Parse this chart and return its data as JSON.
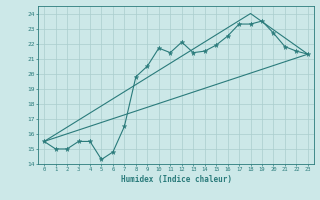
{
  "line1_x": [
    0,
    1,
    2,
    3,
    4,
    5,
    6,
    7,
    8,
    9,
    10,
    11,
    12,
    13,
    14,
    15,
    16,
    17,
    18,
    19,
    20,
    21,
    22,
    23
  ],
  "line1_y": [
    15.5,
    15.0,
    15.0,
    15.5,
    15.5,
    14.3,
    14.8,
    16.5,
    19.8,
    20.5,
    21.7,
    21.4,
    22.1,
    21.4,
    21.5,
    21.9,
    22.5,
    23.3,
    23.3,
    23.5,
    22.7,
    21.8,
    21.5,
    21.3
  ],
  "line2_x": [
    0,
    23
  ],
  "line2_y": [
    15.5,
    21.3
  ],
  "line3_x": [
    0,
    18,
    23
  ],
  "line3_y": [
    15.5,
    24.0,
    21.3
  ],
  "color": "#2a7b7b",
  "bg_color": "#cce8e8",
  "grid_color": "#aacece",
  "xlabel": "Humidex (Indice chaleur)",
  "xlim": [
    -0.5,
    23.5
  ],
  "ylim": [
    14,
    24.5
  ],
  "xticks": [
    0,
    1,
    2,
    3,
    4,
    5,
    6,
    7,
    8,
    9,
    10,
    11,
    12,
    13,
    14,
    15,
    16,
    17,
    18,
    19,
    20,
    21,
    22,
    23
  ],
  "yticks": [
    14,
    15,
    16,
    17,
    18,
    19,
    20,
    21,
    22,
    23,
    24
  ]
}
